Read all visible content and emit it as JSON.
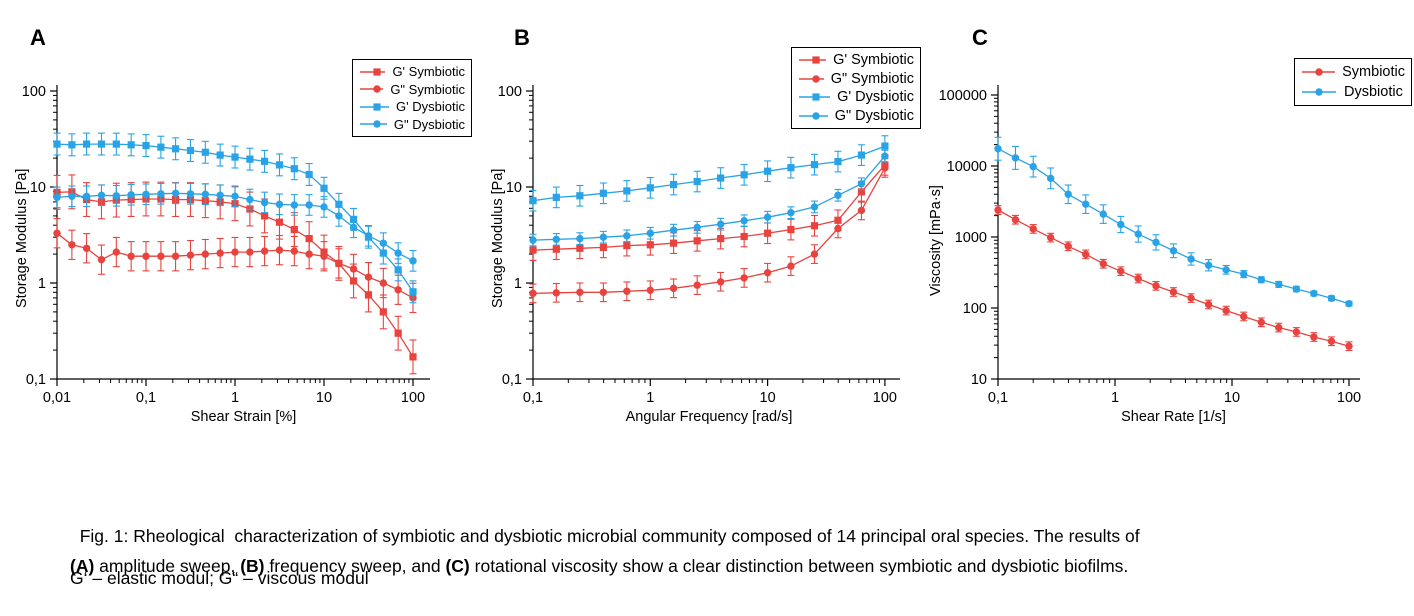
{
  "colors": {
    "symbiotic": "#e8433f",
    "dysbiotic": "#29a3e6",
    "axis": "#000000"
  },
  "chart_data": [
    {
      "type": "line",
      "panel": "A",
      "title": "",
      "xlabel": "Shear Strain [%]",
      "ylabel": "Storage Modulus [Pa]",
      "xscale": "log",
      "yscale": "log",
      "xlim": [
        0.01,
        100
      ],
      "ylim": [
        0.1,
        100
      ],
      "grid": false,
      "legend_position": "top-right",
      "x_ticks": [
        {
          "v": 0.01,
          "label": "0,01"
        },
        {
          "v": 0.1,
          "label": "0,1"
        },
        {
          "v": 1,
          "label": "1"
        },
        {
          "v": 10,
          "label": "10"
        },
        {
          "v": 100,
          "label": "100"
        }
      ],
      "y_ticks": [
        {
          "v": 0.1,
          "label": "0,1"
        },
        {
          "v": 1,
          "label": "1"
        },
        {
          "v": 10,
          "label": "10"
        },
        {
          "v": 100,
          "label": "100"
        }
      ],
      "x": [
        0.01,
        0.0147,
        0.0215,
        0.0316,
        0.0464,
        0.0681,
        0.1,
        0.147,
        0.215,
        0.316,
        0.464,
        0.681,
        1,
        1.47,
        2.15,
        3.16,
        4.64,
        6.81,
        10,
        14.7,
        21.5,
        31.6,
        46.4,
        68.1,
        100
      ],
      "series": [
        {
          "name": "G' Symbiotic",
          "color_key": "symbiotic",
          "marker": "square",
          "values": [
            8.8,
            8.9,
            7.4,
            7.0,
            7.3,
            7.4,
            7.5,
            7.5,
            7.4,
            7.4,
            7.2,
            7.0,
            6.7,
            5.9,
            5.0,
            4.3,
            3.6,
            2.9,
            2.1,
            1.6,
            1.05,
            0.75,
            0.5,
            0.3,
            0.17
          ],
          "err_factor": 1.5
        },
        {
          "name": "G\" Symbiotic",
          "color_key": "symbiotic",
          "marker": "circle",
          "values": [
            3.3,
            2.5,
            2.3,
            1.75,
            2.1,
            1.9,
            1.9,
            1.9,
            1.9,
            1.95,
            2.0,
            2.05,
            2.1,
            2.1,
            2.15,
            2.2,
            2.15,
            2.0,
            1.9,
            1.6,
            1.4,
            1.15,
            1.0,
            0.85,
            0.7
          ],
          "err_factor": 1.42
        },
        {
          "name": "G' Dysbiotic",
          "color_key": "dysbiotic",
          "marker": "square",
          "values": [
            28,
            27.5,
            28,
            28,
            28,
            27.5,
            27,
            26,
            25,
            24,
            23,
            21.5,
            20.5,
            19.5,
            18.5,
            17,
            15.5,
            13.5,
            9.7,
            6.6,
            4.6,
            3.0,
            2.05,
            1.37,
            0.81
          ],
          "err_factor": 1.3
        },
        {
          "name": "G\" Dysbiotic",
          "color_key": "dysbiotic",
          "marker": "circle",
          "values": [
            7.8,
            8.0,
            8.0,
            8.2,
            8.1,
            8.3,
            8.4,
            8.5,
            8.6,
            8.5,
            8.4,
            8.2,
            8.0,
            7.4,
            6.9,
            6.6,
            6.5,
            6.5,
            6.2,
            5.0,
            3.8,
            3.1,
            2.6,
            2.05,
            1.7
          ],
          "err_factor": 1.28
        }
      ]
    },
    {
      "type": "line",
      "panel": "B",
      "title": "",
      "xlabel": "Angular Frequency [rad/s]",
      "ylabel": "Storage Modulus [Pa]",
      "xscale": "log",
      "yscale": "log",
      "xlim": [
        0.1,
        100
      ],
      "ylim": [
        0.1,
        100
      ],
      "grid": false,
      "legend_position": "top-right",
      "x_ticks": [
        {
          "v": 0.1,
          "label": "0,1"
        },
        {
          "v": 1,
          "label": "1"
        },
        {
          "v": 10,
          "label": "10"
        },
        {
          "v": 100,
          "label": "100"
        }
      ],
      "y_ticks": [
        {
          "v": 0.1,
          "label": "0,1"
        },
        {
          "v": 1,
          "label": "1"
        },
        {
          "v": 10,
          "label": "10"
        },
        {
          "v": 100,
          "label": "100"
        }
      ],
      "x": [
        0.1,
        0.158,
        0.251,
        0.398,
        0.631,
        1,
        1.58,
        2.51,
        3.98,
        6.31,
        10,
        15.8,
        25.1,
        39.8,
        63.1,
        100
      ],
      "series": [
        {
          "name": "G' Symbiotic",
          "color_key": "symbiotic",
          "marker": "square",
          "values": [
            2.2,
            2.25,
            2.3,
            2.35,
            2.45,
            2.5,
            2.6,
            2.75,
            2.9,
            3.05,
            3.3,
            3.6,
            3.95,
            4.5,
            8.9,
            17
          ],
          "err_factor": 1.28
        },
        {
          "name": "G\" Symbiotic",
          "color_key": "symbiotic",
          "marker": "circle",
          "values": [
            0.78,
            0.79,
            0.8,
            0.8,
            0.82,
            0.84,
            0.88,
            0.95,
            1.03,
            1.13,
            1.28,
            1.5,
            2.0,
            3.7,
            5.7,
            15.8
          ],
          "err_factor": 1.25
        },
        {
          "name": "G' Dysbiotic",
          "color_key": "dysbiotic",
          "marker": "square",
          "values": [
            7.2,
            7.8,
            8.1,
            8.6,
            9.1,
            9.8,
            10.6,
            11.4,
            12.4,
            13.4,
            14.6,
            15.9,
            17.1,
            18.4,
            21.5,
            26.7
          ],
          "err_factor": 1.28
        },
        {
          "name": "G\" Dysbiotic",
          "color_key": "dysbiotic",
          "marker": "circle",
          "values": [
            2.8,
            2.85,
            2.9,
            3.0,
            3.1,
            3.3,
            3.55,
            3.8,
            4.1,
            4.45,
            4.85,
            5.4,
            6.2,
            8.2,
            10.8,
            21
          ],
          "err_factor": 1.15
        }
      ]
    },
    {
      "type": "line",
      "panel": "C",
      "title": "",
      "xlabel": "Shear Rate [1/s]",
      "ylabel": "Viscosity [mPa·s]",
      "xscale": "log",
      "yscale": "log",
      "xlim": [
        0.1,
        100
      ],
      "ylim": [
        10,
        100000
      ],
      "grid": false,
      "legend_position": "top-right",
      "x_ticks": [
        {
          "v": 0.1,
          "label": "0,1"
        },
        {
          "v": 1,
          "label": "1"
        },
        {
          "v": 10,
          "label": "10"
        },
        {
          "v": 100,
          "label": "100"
        }
      ],
      "y_ticks": [
        {
          "v": 10,
          "label": "10"
        },
        {
          "v": 100,
          "label": "100"
        },
        {
          "v": 1000,
          "label": "1000"
        },
        {
          "v": 10000,
          "label": "10000"
        },
        {
          "v": 100000,
          "label": "100000"
        }
      ],
      "x": [
        0.1,
        0.141,
        0.2,
        0.282,
        0.398,
        0.562,
        0.794,
        1.12,
        1.58,
        2.24,
        3.16,
        4.47,
        6.31,
        8.91,
        12.6,
        17.8,
        25.1,
        35.5,
        50.1,
        70.8,
        100
      ],
      "series": [
        {
          "name": "Symbiotic",
          "color_key": "symbiotic",
          "marker": "circle",
          "values": [
            2400,
            1750,
            1300,
            980,
            740,
            570,
            420,
            330,
            260,
            205,
            168,
            138,
            112,
            92,
            76,
            63,
            53,
            46,
            39,
            34,
            29
          ],
          "err_factor": 1.15
        },
        {
          "name": "Dysbiotic",
          "color_key": "dysbiotic",
          "marker": "circle",
          "values": [
            17500,
            13000,
            9800,
            6700,
            4000,
            2900,
            2100,
            1500,
            1100,
            840,
            640,
            490,
            400,
            345,
            300,
            250,
            215,
            185,
            160,
            137,
            115
          ],
          "err_factor": [
            1.45,
            1.45,
            1.4,
            1.4,
            1.35,
            1.35,
            1.35,
            1.3,
            1.3,
            1.28,
            1.25,
            1.22,
            1.2,
            1.15,
            1.12,
            1.1,
            1.1,
            1.09,
            1.08,
            1.08,
            1.08
          ]
        }
      ]
    }
  ],
  "caption": {
    "segments": [
      {
        "text": "Fig. 1: Rheological  characterization of symbiotic and dysbiotic microbial community composed of 14 principal oral species. The results of",
        "bold": false
      },
      {
        "text": "(A)",
        "bold": true,
        "br": true
      },
      {
        "text": " amplitude sweep, ",
        "bold": false
      },
      {
        "text": "(B)",
        "bold": true
      },
      {
        "text": " frequency sweep, and ",
        "bold": false
      },
      {
        "text": "(C)",
        "bold": true
      },
      {
        "text": " rotational viscosity show a clear distinction between symbiotic and dysbiotic biofilms.",
        "bold": false
      }
    ],
    "note": "G‘ – elastic modul; G“ – viscous modul"
  }
}
